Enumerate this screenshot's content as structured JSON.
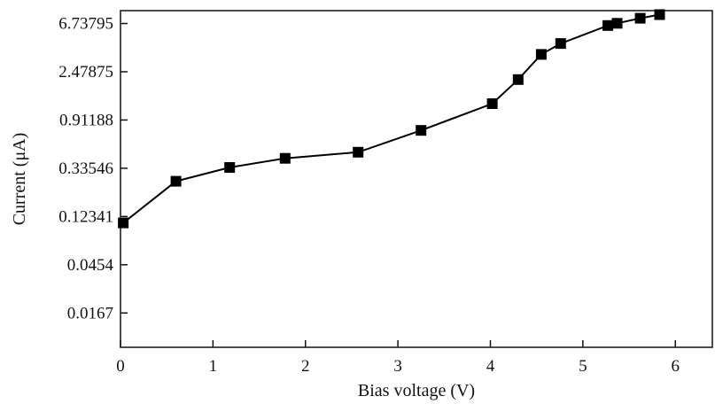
{
  "chart_data": {
    "type": "line",
    "title": "",
    "xlabel": "Bias voltage (V)",
    "ylabel": "Current (μA)",
    "y_scale": "log",
    "xlim": [
      0,
      6.4
    ],
    "ylim": [
      0.0082,
      8.8
    ],
    "x_ticks": [
      0,
      1,
      2,
      3,
      4,
      5,
      6
    ],
    "x_tick_labels": [
      "0",
      "1",
      "2",
      "3",
      "4",
      "5",
      "6"
    ],
    "y_ticks": [
      0.0167,
      0.0454,
      0.12341,
      0.33546,
      0.91188,
      2.47875,
      6.73795
    ],
    "y_tick_labels": [
      "0.0167",
      "0.0454",
      "0.12341",
      "0.33546",
      "0.91188",
      "2.47875",
      "6.73795"
    ],
    "grid": false,
    "marker": "square",
    "series": [
      {
        "color": "#000000",
        "x": [
          0.03,
          0.6,
          1.18,
          1.78,
          2.57,
          3.25,
          4.02,
          4.3,
          4.55,
          4.76,
          5.27,
          5.37,
          5.62,
          5.83
        ],
        "y": [
          0.108,
          0.256,
          0.341,
          0.412,
          0.468,
          0.735,
          1.28,
          2.11,
          3.55,
          4.45,
          6.46,
          6.77,
          7.52,
          8.1
        ]
      }
    ]
  }
}
